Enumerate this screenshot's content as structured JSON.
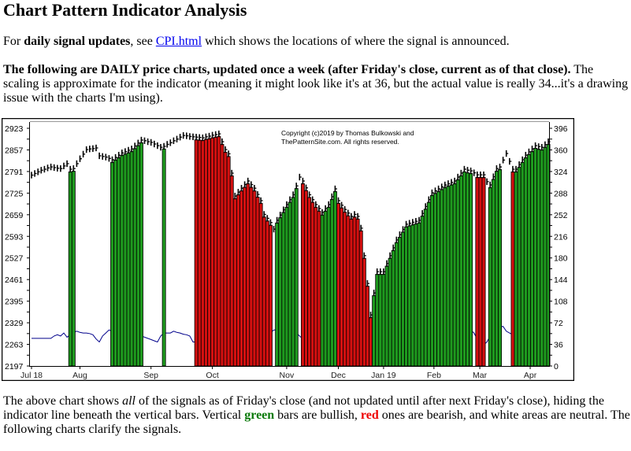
{
  "page": {
    "title": "Chart Pattern Indicator Analysis",
    "p1": {
      "a": "For ",
      "bold": "daily signal updates",
      "b": ", see ",
      "link": "CPI.html",
      "c": " which shows the locations of where the signal is announced."
    },
    "p2": {
      "bold": "The following are DAILY price charts, updated once a week (after Friday's close, current as of that close).",
      "rest": " The scaling is approximate for the indicator (meaning it might look like it's at 36, but the actual value is really 34...it's a drawing issue with the charts I'm using)."
    },
    "p3": {
      "a": "The above chart shows ",
      "em": "all",
      "b": " of the signals as of Friday's close (and not updated until after next Friday's close), hiding the indicator line beneath the vertical bars. Vertical ",
      "green": "green",
      "c": " bars are bullish, ",
      "red": "red",
      "d": " ones are bearish, and white areas are neutral. The following charts clarify the signals."
    }
  },
  "chart_data": {
    "type": "bar",
    "copyright": [
      "Copyright (c)2019 by Thomas Bulkowski and",
      "ThePatternSite.com. All rights reserved."
    ],
    "left_axis": {
      "ticks": [
        2923,
        2857,
        2791,
        2725,
        2659,
        2593,
        2527,
        2461,
        2395,
        2329,
        2263,
        2197
      ],
      "ylim": [
        2197,
        2923
      ]
    },
    "right_axis": {
      "ticks": [
        396,
        360,
        324,
        288,
        252,
        216,
        180,
        144,
        108,
        72,
        36,
        0
      ],
      "ylim": [
        0,
        396
      ]
    },
    "x_labels": [
      {
        "label": "Jul 18",
        "day": 0
      },
      {
        "label": "Aug",
        "day": 15
      },
      {
        "label": "Sep",
        "day": 37
      },
      {
        "label": "Oct",
        "day": 56
      },
      {
        "label": "Nov",
        "day": 79
      },
      {
        "label": "Dec",
        "day": 95
      },
      {
        "label": "Jan 19",
        "day": 109
      },
      {
        "label": "Feb",
        "day": 124.6
      },
      {
        "label": "Mar",
        "day": 138.8
      },
      {
        "label": "Apr",
        "day": 154.4
      }
    ],
    "colors": {
      "bullish": "#1e9a1e",
      "bearish": "#d41010",
      "price": "#000000",
      "indicator": "#00008b"
    },
    "close": [
      2780,
      2785,
      2790,
      2795,
      2798,
      2802,
      2805,
      2803,
      2801,
      2800,
      2808,
      2815,
      2798,
      2800,
      2815,
      2830,
      2844,
      2858,
      2860,
      2861,
      2863,
      2839,
      2837,
      2835,
      2831,
      2827,
      2834,
      2841,
      2848,
      2852,
      2856,
      2860,
      2869,
      2878,
      2887,
      2885,
      2882,
      2880,
      2875,
      2870,
      2865,
      2868,
      2874,
      2879,
      2885,
      2890,
      2896,
      2901,
      2900,
      2898,
      2897,
      2896,
      2895,
      2894,
      2897,
      2899,
      2902,
      2904,
      2906,
      2882,
      2858,
      2845,
      2786,
      2716,
      2728,
      2740,
      2751,
      2762,
      2751,
      2740,
      2721,
      2702,
      2660,
      2648,
      2635,
      2615,
      2642,
      2658,
      2674,
      2690,
      2705,
      2720,
      2747,
      2774,
      2762,
      2741,
      2720,
      2705,
      2690,
      2678,
      2666,
      2678,
      2690,
      2714,
      2738,
      2702,
      2688,
      2675,
      2664,
      2654,
      2660,
      2654,
      2618,
      2534,
      2449,
      2353,
      2420,
      2485,
      2485,
      2485,
      2510,
      2534,
      2558,
      2582,
      2598,
      2614,
      2630,
      2633,
      2636,
      2639,
      2642,
      2663,
      2684,
      2705,
      2726,
      2732,
      2738,
      2744,
      2750,
      2754,
      2758,
      2762,
      2774,
      2786,
      2798,
      2795,
      2793,
      2787,
      2781,
      2781,
      2781,
      2760,
      2750,
      2775,
      2800,
      2805,
      2826,
      2846,
      2822,
      2798,
      2798,
      2812,
      2827,
      2841,
      2851,
      2860,
      2870,
      2867,
      2865,
      2873,
      2882
    ],
    "indicator": [
      46,
      46,
      46,
      46,
      46,
      46,
      46,
      50,
      52,
      50,
      55,
      48,
      52,
      56,
      58,
      56,
      55,
      55,
      54,
      52,
      45,
      40,
      50,
      55,
      60,
      58,
      56,
      55,
      54,
      52,
      50,
      50,
      50,
      50,
      50,
      48,
      46,
      44,
      42,
      40,
      50,
      55,
      55,
      55,
      58,
      56,
      55,
      53,
      52,
      50,
      40,
      40,
      40,
      40,
      40,
      40,
      40,
      40,
      40,
      40,
      40,
      40,
      40,
      40,
      40,
      40,
      40,
      40,
      40,
      40,
      40,
      40,
      45,
      50,
      55,
      60,
      60,
      58,
      58,
      56,
      56,
      55,
      55,
      50,
      45,
      45,
      45,
      45,
      45,
      45,
      45,
      45,
      50,
      50,
      55,
      55,
      55,
      55,
      50,
      50,
      50,
      50,
      50,
      50,
      50,
      50,
      50,
      50,
      50,
      50,
      50,
      50,
      50,
      50,
      50,
      50,
      50,
      50,
      50,
      50,
      50,
      50,
      50,
      50,
      50,
      50,
      50,
      50,
      50,
      50,
      50,
      50,
      50,
      55,
      60,
      60,
      60,
      55,
      45,
      40,
      35,
      40,
      50,
      60,
      62,
      65,
      66,
      58,
      55,
      52,
      50,
      50,
      50,
      50,
      50,
      50,
      50,
      50,
      50,
      50,
      50
    ],
    "signals": [
      {
        "start": 12,
        "end": 13,
        "signal": "bullish"
      },
      {
        "start": 25,
        "end": 34,
        "signal": "bullish"
      },
      {
        "start": 41,
        "end": 41,
        "signal": "bullish"
      },
      {
        "start": 51,
        "end": 74,
        "signal": "bearish"
      },
      {
        "start": 76,
        "end": 82,
        "signal": "bullish"
      },
      {
        "start": 84,
        "end": 89,
        "signal": "bearish"
      },
      {
        "start": 90,
        "end": 94,
        "signal": "bullish"
      },
      {
        "start": 95,
        "end": 105,
        "signal": "bearish"
      },
      {
        "start": 106,
        "end": 136,
        "signal": "bullish"
      },
      {
        "start": 138,
        "end": 140,
        "signal": "bearish"
      },
      {
        "start": 142,
        "end": 145,
        "signal": "bullish"
      },
      {
        "start": 149,
        "end": 149,
        "signal": "bearish"
      },
      {
        "start": 150,
        "end": 160,
        "signal": "bullish"
      }
    ]
  }
}
